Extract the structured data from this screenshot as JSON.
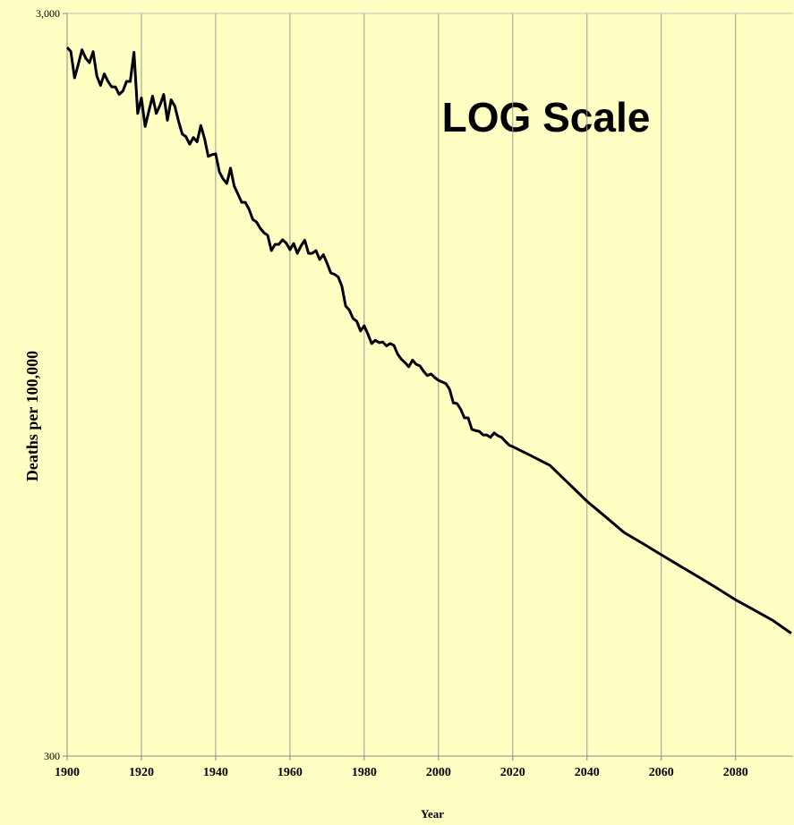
{
  "chart_data": {
    "type": "line",
    "annotation": "LOG Scale",
    "xlabel": "Year",
    "ylabel": "Deaths per 100,000",
    "log_y": true,
    "grid": "x",
    "xlim": [
      1900,
      2095.5
    ],
    "xticks": [
      1900,
      1920,
      1940,
      1960,
      1980,
      2000,
      2020,
      2040,
      2060,
      2080
    ],
    "ylim": [
      300,
      3000
    ],
    "yticks": [
      300,
      {
        "value": 3000,
        "label": "3,000"
      }
    ],
    "x": [
      1900,
      1901,
      1902,
      1903,
      1904,
      1905,
      1906,
      1907,
      1908,
      1909,
      1910,
      1911,
      1912,
      1913,
      1914,
      1915,
      1916,
      1917,
      1918,
      1919,
      1920,
      1921,
      1922,
      1923,
      1924,
      1925,
      1926,
      1927,
      1928,
      1929,
      1930,
      1931,
      1932,
      1933,
      1934,
      1935,
      1936,
      1937,
      1938,
      1939,
      1940,
      1941,
      1942,
      1943,
      1944,
      1945,
      1946,
      1947,
      1948,
      1949,
      1950,
      1951,
      1952,
      1953,
      1954,
      1955,
      1956,
      1957,
      1958,
      1959,
      1960,
      1961,
      1962,
      1963,
      1964,
      1965,
      1966,
      1967,
      1968,
      1969,
      1970,
      1971,
      1972,
      1973,
      1974,
      1975,
      1976,
      1977,
      1978,
      1979,
      1980,
      1981,
      1982,
      1983,
      1984,
      1985,
      1986,
      1987,
      1988,
      1989,
      1990,
      1991,
      1992,
      1993,
      1994,
      1995,
      1996,
      1997,
      1998,
      1999,
      2000,
      2001,
      2002,
      2003,
      2004,
      2005,
      2006,
      2007,
      2008,
      2009,
      2010,
      2011,
      2012,
      2013,
      2014,
      2015,
      2016,
      2017,
      2018,
      2019,
      2020,
      2025,
      2030,
      2035,
      2040,
      2045,
      2050,
      2055,
      2060,
      2065,
      2070,
      2075,
      2080,
      2085,
      2090,
      2095
    ],
    "series": [
      {
        "name": "Deaths per 100,000",
        "color": "#000000",
        "values": [
          2700,
          2665,
          2457,
          2562,
          2680,
          2612,
          2575,
          2665,
          2470,
          2400,
          2487,
          2430,
          2389,
          2389,
          2334,
          2358,
          2430,
          2430,
          2660,
          2200,
          2308,
          2113,
          2215,
          2322,
          2200,
          2256,
          2334,
          2154,
          2295,
          2250,
          2148,
          2064,
          2047,
          2000,
          2042,
          2015,
          2119,
          2036,
          1926,
          1936,
          1941,
          1835,
          1796,
          1771,
          1857,
          1756,
          1713,
          1670,
          1670,
          1634,
          1584,
          1571,
          1541,
          1520,
          1508,
          1438,
          1466,
          1466,
          1487,
          1472,
          1442,
          1470,
          1426,
          1460,
          1485,
          1426,
          1426,
          1438,
          1399,
          1420,
          1383,
          1342,
          1336,
          1325,
          1287,
          1211,
          1196,
          1165,
          1155,
          1121,
          1139,
          1110,
          1078,
          1089,
          1081,
          1083,
          1070,
          1078,
          1072,
          1043,
          1027,
          1016,
          1003,
          1024,
          1011,
          1006,
          989,
          976,
          981,
          970,
          962,
          957,
          952,
          935,
          897,
          895,
          879,
          856,
          856,
          826,
          823,
          821,
          812,
          812,
          806,
          817,
          810,
          806,
          796,
          787,
          783,
          761,
          739,
          699,
          661,
          630,
          600,
          580,
          560,
          541,
          523,
          505,
          487,
          472,
          457,
          439
        ]
      }
    ]
  }
}
